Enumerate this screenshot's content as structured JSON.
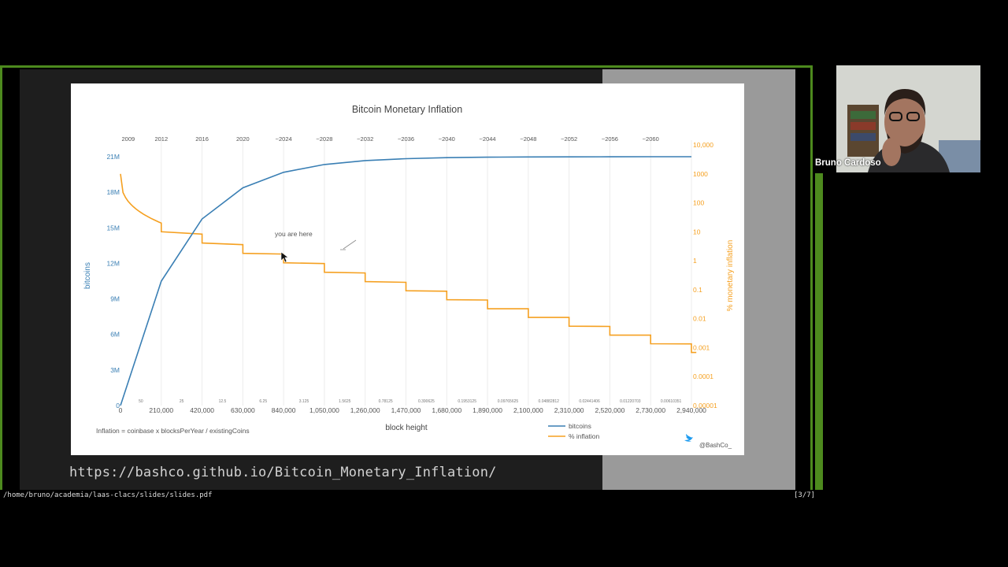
{
  "screen_share": {
    "url_text": "https://bashco.github.io/Bitcoin_Monetary_Inflation/",
    "file_path": "/home/bruno/academia/laas-clacs/slides/slides.pdf",
    "page_indicator": "[3/7]"
  },
  "participant": {
    "name": "Bruno Cardoso"
  },
  "colors": {
    "bitcoins": "#3a7fb4",
    "inflation": "#f5a020",
    "frame": "#4d8a1e"
  },
  "chart_data": {
    "type": "line",
    "title": "Bitcoin Monetary Inflation",
    "xlabel": "block height",
    "ylabel": "bitcoins",
    "y2label": "% monetary inflation",
    "xlim": [
      0,
      2940000
    ],
    "ylim": [
      0,
      21000000
    ],
    "y2lim": [
      1e-05,
      10000
    ],
    "y2scale": "log",
    "x_tick_labels": [
      "0",
      "210,000",
      "420,000",
      "630,000",
      "840,000",
      "1,050,000",
      "1,260,000",
      "1,470,000",
      "1,680,000",
      "1,890,000",
      "2,100,000",
      "2,310,000",
      "2,520,000",
      "2,730,000",
      "2,940,000"
    ],
    "x_ticks": [
      0,
      210000,
      420000,
      630000,
      840000,
      1050000,
      1260000,
      1470000,
      1680000,
      1890000,
      2100000,
      2310000,
      2520000,
      2730000,
      2940000
    ],
    "y_tick_labels": [
      "0",
      "3M",
      "6M",
      "9M",
      "12M",
      "15M",
      "18M",
      "21M"
    ],
    "y_ticks": [
      0,
      3000000,
      6000000,
      9000000,
      12000000,
      15000000,
      18000000,
      21000000
    ],
    "y2_tick_labels": [
      "10,000",
      "1000",
      "100",
      "10",
      "1",
      "0.1",
      "0.01",
      "0.001",
      "0.0001",
      "0.00001"
    ],
    "y2_ticks": [
      10000,
      1000,
      100,
      10,
      1,
      0.1,
      0.01,
      0.001,
      0.0001,
      1e-05
    ],
    "top_axis_labels": [
      "2009",
      "2012",
      "2016",
      "2020",
      "~2024",
      "~2028",
      "~2032",
      "~2036",
      "~2040",
      "~2044",
      "~2048",
      "~2052",
      "~2056",
      "~2060"
    ],
    "top_axis_positions": [
      40000,
      210000,
      420000,
      630000,
      840000,
      1050000,
      1260000,
      1470000,
      1680000,
      1890000,
      2100000,
      2310000,
      2520000,
      2730000
    ],
    "reward_labels": [
      "50",
      "25",
      "12.5",
      "6.25",
      "3.125",
      "1.5625",
      "0.78125",
      "0.390625",
      "0.1953125",
      "0.09765625",
      "0.04882812",
      "0.02441406",
      "0.01220703",
      "0.00610351"
    ],
    "reward_positions": [
      105000,
      315000,
      525000,
      735000,
      945000,
      1155000,
      1365000,
      1575000,
      1785000,
      1995000,
      2205000,
      2415000,
      2625000,
      2835000
    ],
    "series": [
      {
        "name": "bitcoins",
        "axis": "y",
        "x": [
          0,
          210000,
          420000,
          630000,
          840000,
          1050000,
          1260000,
          1470000,
          1680000,
          1890000,
          2100000,
          2310000,
          2520000,
          2730000,
          2940000
        ],
        "values": [
          0,
          10500000,
          15750000,
          18375000,
          19687500,
          20343750,
          20671875,
          20835937,
          20917968,
          20958984,
          20979492,
          20989746,
          20994873,
          20997436,
          20998718
        ]
      },
      {
        "name": "% inflation",
        "axis": "y2",
        "x": [
          0,
          210000,
          420000,
          630000,
          840000,
          1050000,
          1260000,
          1470000,
          1680000,
          1890000,
          2100000,
          2310000,
          2520000,
          2730000,
          2940000
        ],
        "start_value": 1000,
        "pre_halving": [
          20,
          8.3,
          3.6,
          1.7,
          0.8,
          0.38,
          0.18,
          0.089,
          0.044,
          0.022,
          0.011,
          0.0054,
          0.0027,
          0.00135,
          0.00068
        ],
        "post_halving": [
          10,
          4.1,
          1.8,
          0.85,
          0.4,
          0.19,
          0.092,
          0.045,
          0.022,
          0.011,
          0.0055,
          0.0027,
          0.00136,
          0.00068
        ]
      }
    ],
    "annotation": {
      "text": "you are here",
      "x": 840000
    },
    "footnote": "Inflation = coinbase x blocksPerYear / existingCoins",
    "legend": {
      "placement": "bottom-right",
      "entries": [
        "bitcoins",
        "% inflation"
      ]
    },
    "credit": "@BashCo_",
    "grid": true
  }
}
